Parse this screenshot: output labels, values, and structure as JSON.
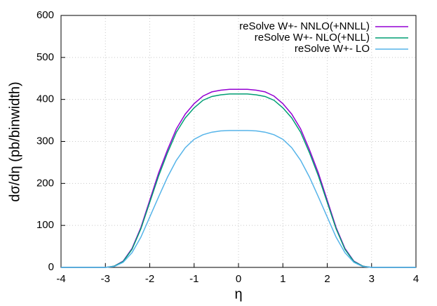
{
  "chart_data": {
    "type": "line",
    "xlabel": "η",
    "ylabel": "dσ/dη (pb/binwidth)",
    "x": [
      -4,
      -3.8,
      -3.6,
      -3.4,
      -3.2,
      -3,
      -2.8,
      -2.6,
      -2.4,
      -2.2,
      -2,
      -1.8,
      -1.6,
      -1.4,
      -1.2,
      -1,
      -0.8,
      -0.6,
      -0.4,
      -0.2,
      0,
      0.2,
      0.4,
      0.6,
      0.8,
      1,
      1.2,
      1.4,
      1.6,
      1.8,
      2,
      2.2,
      2.4,
      2.6,
      2.8,
      3,
      3.2,
      3.4,
      3.6,
      3.8,
      4
    ],
    "series": [
      {
        "name": "reSolve W+- NNLO(+NNLL)",
        "color": "#9400d3",
        "values": [
          0,
          0,
          0,
          0,
          0,
          0,
          3,
          15,
          45,
          95,
          160,
          225,
          280,
          330,
          365,
          390,
          408,
          418,
          422,
          424,
          424,
          424,
          422,
          418,
          408,
          390,
          365,
          330,
          280,
          225,
          160,
          95,
          45,
          15,
          3,
          0,
          0,
          0,
          0,
          0,
          0
        ]
      },
      {
        "name": "reSolve W+- NLO(+NLL)",
        "color": "#009e73",
        "values": [
          0,
          0,
          0,
          0,
          0,
          0,
          3,
          14,
          43,
          92,
          155,
          218,
          273,
          322,
          356,
          380,
          398,
          407,
          411,
          413,
          413,
          413,
          411,
          407,
          398,
          380,
          356,
          322,
          273,
          218,
          155,
          92,
          43,
          14,
          3,
          0,
          0,
          0,
          0,
          0,
          0
        ]
      },
      {
        "name": "reSolve W+- LO",
        "color": "#56b4e9",
        "values": [
          0,
          0,
          0,
          0,
          0,
          0,
          2,
          12,
          35,
          72,
          120,
          168,
          215,
          255,
          285,
          305,
          316,
          322,
          325,
          326,
          326,
          326,
          325,
          322,
          316,
          305,
          285,
          255,
          215,
          168,
          120,
          72,
          35,
          12,
          2,
          0,
          0,
          0,
          0,
          0,
          0
        ]
      }
    ],
    "xlim": [
      -4,
      4
    ],
    "xticks": [
      -4,
      -3,
      -2,
      -1,
      0,
      1,
      2,
      3,
      4
    ],
    "ylim": [
      0,
      600
    ],
    "yticks": [
      0,
      100,
      200,
      300,
      400,
      500,
      600
    ],
    "grid": true,
    "legend": "top-right"
  }
}
